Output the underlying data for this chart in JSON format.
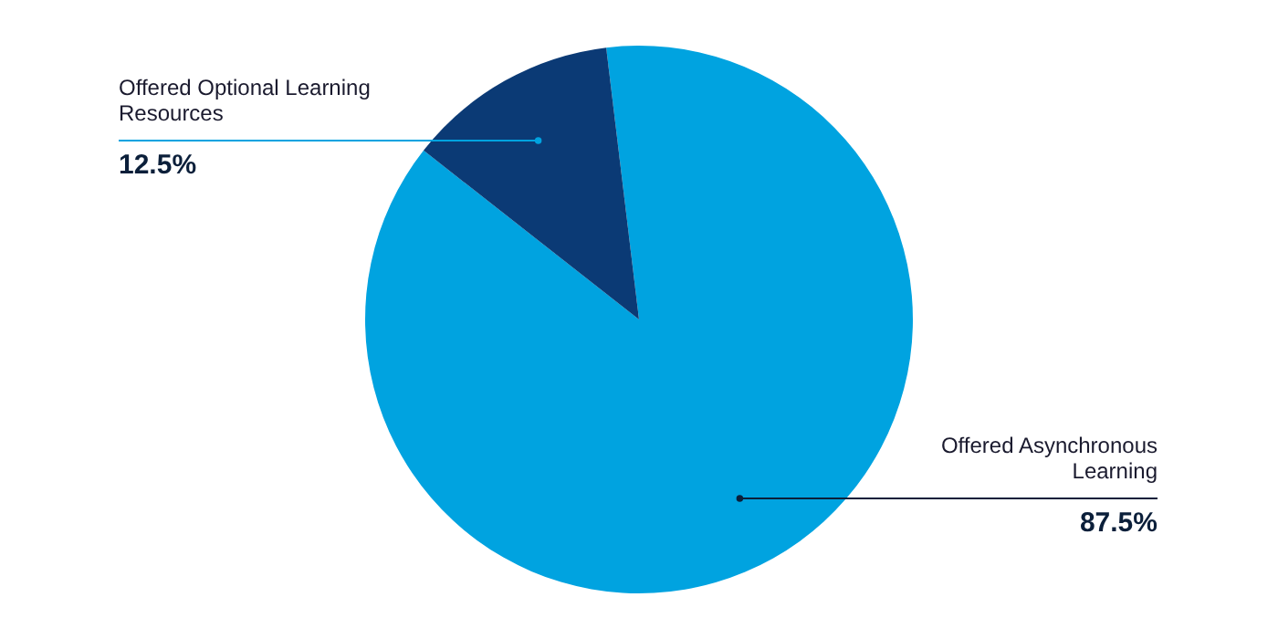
{
  "chart_data": {
    "type": "pie",
    "categories": [
      "Offered Asynchronous Learning",
      "Offered Optional Learning Resources"
    ],
    "values": [
      87.5,
      12.5
    ],
    "colors": [
      "#00a3e0",
      "#0b3a75"
    ],
    "value_labels": [
      "87.5%",
      "12.5%"
    ]
  }
}
